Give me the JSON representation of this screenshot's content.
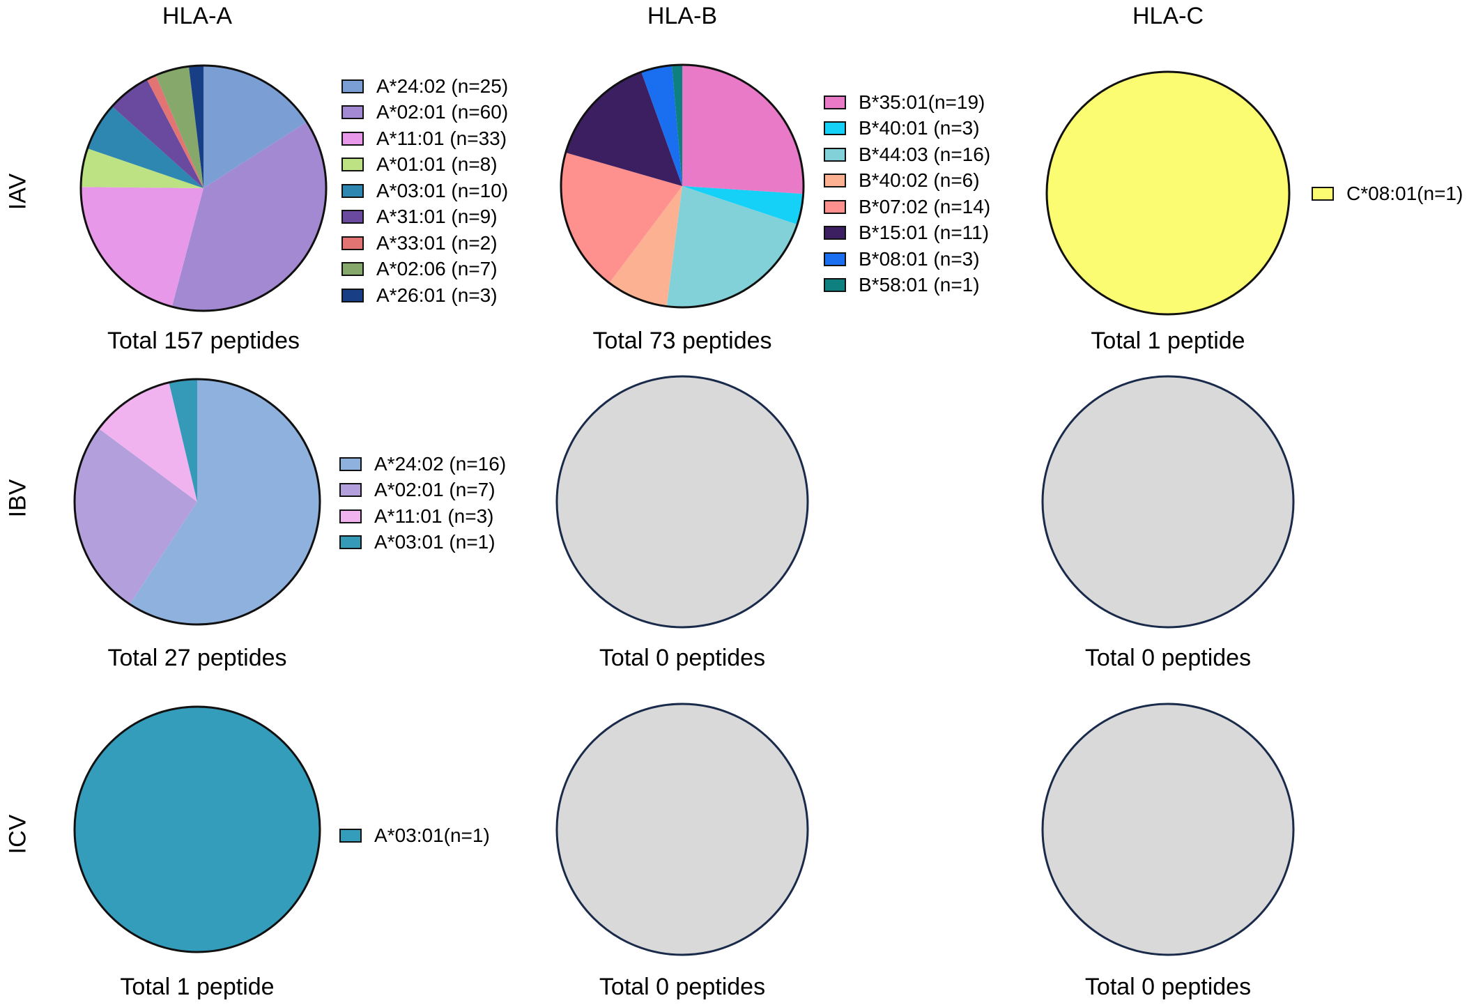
{
  "columns": [
    "HLA-A",
    "HLA-B",
    "HLA-C"
  ],
  "rows": [
    "IAV",
    "IBV",
    "ICV"
  ],
  "chart_data": [
    {
      "type": "pie",
      "row": "IAV",
      "column": "HLA-A",
      "total_label": "Total 157 peptides",
      "slices": [
        {
          "label": "A*24:02 (n=25)",
          "value": 25,
          "color": "#7b9fd4"
        },
        {
          "label": "A*02:01 (n=60)",
          "value": 60,
          "color": "#a389d2"
        },
        {
          "label": "A*11:01 (n=33)",
          "value": 33,
          "color": "#e898e8"
        },
        {
          "label": "A*01:01 (n=8)",
          "value": 8,
          "color": "#bde283"
        },
        {
          "label": "A*03:01 (n=10)",
          "value": 10,
          "color": "#2d87b0"
        },
        {
          "label": "A*31:01 (n=9)",
          "value": 9,
          "color": "#6a4a9e"
        },
        {
          "label": "A*33:01 (n=2)",
          "value": 2,
          "color": "#e37474"
        },
        {
          "label": "A*02:06 (n=7)",
          "value": 7,
          "color": "#86a86a"
        },
        {
          "label": "A*26:01 (n=3)",
          "value": 3,
          "color": "#183e86"
        }
      ]
    },
    {
      "type": "pie",
      "row": "IAV",
      "column": "HLA-B",
      "total_label": "Total 73 peptides",
      "slices": [
        {
          "label": "B*35:01(n=19)",
          "value": 19,
          "color": "#e87ac8"
        },
        {
          "label": "B*40:01 (n=3)",
          "value": 3,
          "color": "#15d0f7"
        },
        {
          "label": "B*44:03 (n=16)",
          "value": 16,
          "color": "#82d1d8"
        },
        {
          "label": "B*40:02 (n=6)",
          "value": 6,
          "color": "#fcb192"
        },
        {
          "label": "B*07:02 (n=14)",
          "value": 14,
          "color": "#fe918d"
        },
        {
          "label": "B*15:01 (n=11)",
          "value": 11,
          "color": "#3c1f61"
        },
        {
          "label": "B*08:01 (n=3)",
          "value": 3,
          "color": "#1a6ef0"
        },
        {
          "label": "B*58:01 (n=1)",
          "value": 1,
          "color": "#0f8080"
        }
      ]
    },
    {
      "type": "pie",
      "row": "IAV",
      "column": "HLA-C",
      "total_label": "Total 1 peptide",
      "slices": [
        {
          "label": "C*08:01(n=1)",
          "value": 1,
          "color": "#fcfc72"
        }
      ]
    },
    {
      "type": "pie",
      "row": "IBV",
      "column": "HLA-A",
      "total_label": "Total 27 peptides",
      "slices": [
        {
          "label": "A*24:02 (n=16)",
          "value": 16,
          "color": "#8fb1de"
        },
        {
          "label": "A*02:01 (n=7)",
          "value": 7,
          "color": "#b39fdc"
        },
        {
          "label": "A*11:01 (n=3)",
          "value": 3,
          "color": "#f0b3ef"
        },
        {
          "label": "A*03:01 (n=1)",
          "value": 1,
          "color": "#3599b8"
        }
      ]
    },
    {
      "type": "pie",
      "row": "IBV",
      "column": "HLA-B",
      "total_label": "Total 0 peptides",
      "slices": []
    },
    {
      "type": "pie",
      "row": "IBV",
      "column": "HLA-C",
      "total_label": "Total 0 peptides",
      "slices": []
    },
    {
      "type": "pie",
      "row": "ICV",
      "column": "HLA-A",
      "total_label": "Total 1 peptide",
      "slices": [
        {
          "label": "A*03:01(n=1)",
          "value": 1,
          "color": "#349dbc"
        }
      ]
    },
    {
      "type": "pie",
      "row": "ICV",
      "column": "HLA-B",
      "total_label": "Total 0 peptides",
      "slices": []
    },
    {
      "type": "pie",
      "row": "ICV",
      "column": "HLA-C",
      "total_label": "Total 0 peptides",
      "slices": []
    }
  ],
  "empty_color": "#d9d9d9"
}
